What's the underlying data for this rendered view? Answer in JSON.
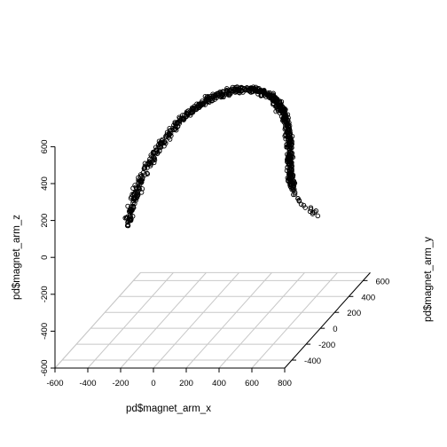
{
  "chart_data": {
    "type": "scatter",
    "title": "",
    "xlabel": "pd$magnet_arm_x",
    "ylabel": "pd$magnet_arm_y",
    "zlabel": "pd$magnet_arm_z",
    "xlim": [
      -600,
      800
    ],
    "ylim": [
      -500,
      700
    ],
    "zlim": [
      -600,
      700
    ],
    "xticks": [
      "-600",
      "-400",
      "-200",
      "0",
      "200",
      "400",
      "600",
      "800"
    ],
    "yticks": [
      "-400",
      "-200",
      "0",
      "200",
      "400",
      "600"
    ],
    "zticks": [
      "-600",
      "-400",
      "-200",
      "0",
      "200",
      "400",
      "600"
    ],
    "grid": "on",
    "marker": "open-circle",
    "marker_color": "#000000",
    "grid_color": "#c8c8c8",
    "path_sample": [
      [
        -410,
        80,
        -80
      ],
      [
        -380,
        90,
        60
      ],
      [
        -320,
        110,
        200
      ],
      [
        -240,
        140,
        330
      ],
      [
        -140,
        170,
        440
      ],
      [
        -40,
        200,
        520
      ],
      [
        60,
        230,
        560
      ],
      [
        160,
        260,
        580
      ],
      [
        260,
        290,
        570
      ],
      [
        340,
        310,
        540
      ],
      [
        400,
        320,
        490
      ],
      [
        430,
        330,
        430
      ],
      [
        450,
        340,
        350
      ],
      [
        460,
        350,
        260
      ],
      [
        460,
        355,
        170
      ],
      [
        460,
        360,
        80
      ],
      [
        470,
        370,
        0
      ],
      [
        490,
        390,
        -60
      ],
      [
        520,
        410,
        -110
      ],
      [
        560,
        430,
        -150
      ],
      [
        600,
        450,
        -170
      ]
    ]
  }
}
